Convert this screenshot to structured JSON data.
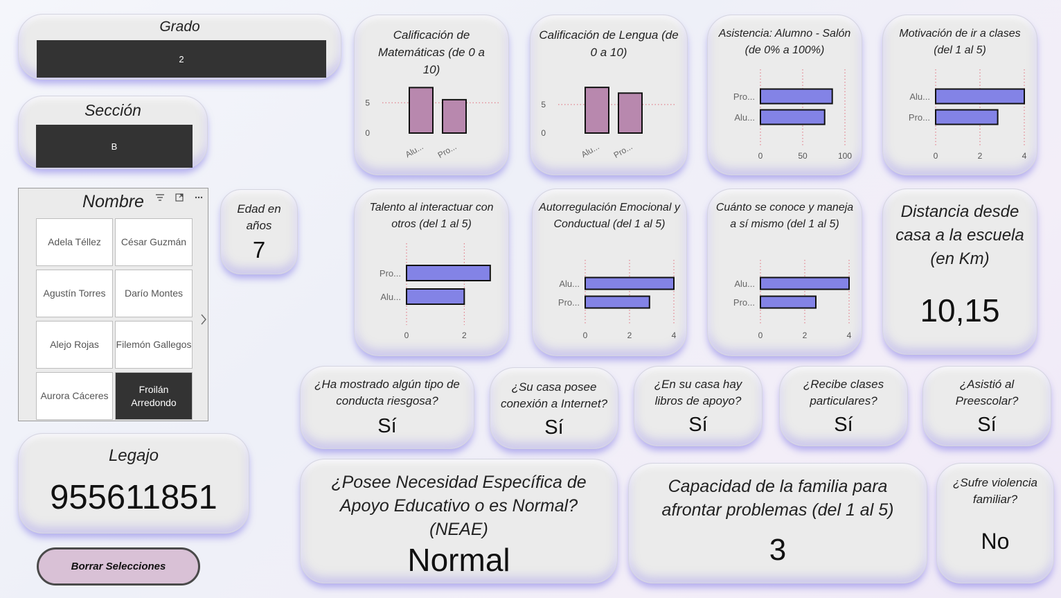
{
  "grado": {
    "title": "Grado",
    "value": "2"
  },
  "seccion": {
    "title": "Sección",
    "value": "B"
  },
  "nombre": {
    "title": "Nombre",
    "items": [
      "Adela Téllez",
      "César Guzmán",
      "Agustín Torres",
      "Darío Montes",
      "Alejo Rojas",
      "Filemón Gallegos",
      "Aurora Cáceres",
      "Froilán Arredondo"
    ],
    "selected": "Froilán Arredondo",
    "icons": [
      "filter-icon",
      "focus-mode-icon",
      "more-options-icon",
      "chevron-right-icon"
    ]
  },
  "edad": {
    "title": "Edad en años",
    "value": "7"
  },
  "legajo": {
    "title": "Legajo",
    "value": "955611851"
  },
  "borrar": {
    "label": "Borrar Selecciones"
  },
  "distancia": {
    "title": "Distancia desde casa a la escuela (en Km)",
    "value": "10,15"
  },
  "conducta": {
    "title": "¿Ha mostrado algún tipo de conducta riesgosa?",
    "value": "Sí"
  },
  "internet": {
    "title": "¿Su casa posee conexión a Internet?",
    "value": "Sí"
  },
  "libros": {
    "title": "¿En su casa hay libros de apoyo?",
    "value": "Sí"
  },
  "particulares": {
    "title": "¿Recibe clases particulares?",
    "value": "Sí"
  },
  "preescolar": {
    "title": "¿Asistió al Preescolar?",
    "value": "Sí"
  },
  "neae": {
    "title": "¿Posee Necesidad Específica de Apoyo Educativo o es Normal? (NEAE)",
    "value": "Normal"
  },
  "capacidad": {
    "title": "Capacidad de la familia para afrontar problemas (del 1 al 5)",
    "value": "3"
  },
  "violencia": {
    "title": "¿Sufre violencia familiar?",
    "value": "No"
  },
  "colors": {
    "vbar": "#b888ae",
    "hbar": "#8383e6",
    "outline": "#111111"
  },
  "chart_data": [
    {
      "id": "mat",
      "type": "bar",
      "title": "Calificación de Matemáticas (de 0 a 10)",
      "categories": [
        "Alu...",
        "Pro..."
      ],
      "values": [
        7.5,
        5.5
      ],
      "ylim": [
        0,
        8
      ],
      "ticks": [
        0,
        5
      ]
    },
    {
      "id": "len",
      "type": "bar",
      "title": "Calificación de Lengua (de 0 a 10)",
      "categories": [
        "Alu...",
        "Pro..."
      ],
      "values": [
        8.0,
        7.0
      ],
      "ylim": [
        0,
        8.5
      ],
      "ticks": [
        0,
        5
      ]
    },
    {
      "id": "asi",
      "type": "hbar",
      "title": "Asistencia: Alumno - Salón (de 0% a 100%)",
      "categories": [
        "Pro...",
        "Alu..."
      ],
      "values": [
        85,
        76
      ],
      "xlim": [
        0,
        100
      ],
      "ticks": [
        0,
        50,
        100
      ]
    },
    {
      "id": "mot",
      "type": "hbar",
      "title": "Motivación de ir a clases (del 1 al 5)",
      "categories": [
        "Alu...",
        "Pro..."
      ],
      "values": [
        4.0,
        2.8
      ],
      "xlim": [
        0,
        4
      ],
      "ticks": [
        0,
        2,
        4
      ]
    },
    {
      "id": "tal",
      "type": "hbar",
      "title": "Talento al interactuar con otros (del 1 al 5)",
      "categories": [
        "Pro...",
        "Alu..."
      ],
      "values": [
        2.9,
        2.0
      ],
      "xlim": [
        0,
        3
      ],
      "ticks": [
        0,
        2
      ]
    },
    {
      "id": "aut",
      "type": "hbar",
      "title": "Autorregulación Emocional y Conductual (del 1 al 5)",
      "categories": [
        "Alu...",
        "Pro..."
      ],
      "values": [
        4.0,
        2.9
      ],
      "xlim": [
        0,
        4
      ],
      "ticks": [
        0,
        2,
        4
      ]
    },
    {
      "id": "con",
      "type": "hbar",
      "title": "Cuánto se conoce y maneja a sí mismo (del 1 al 5)",
      "categories": [
        "Alu...",
        "Pro..."
      ],
      "values": [
        4.0,
        2.5
      ],
      "xlim": [
        0,
        4
      ],
      "ticks": [
        0,
        2,
        4
      ]
    }
  ]
}
